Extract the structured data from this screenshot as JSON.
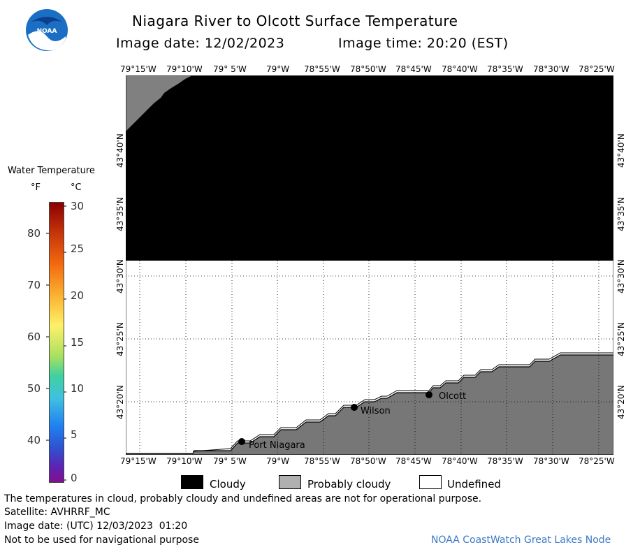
{
  "header": {
    "title": "Niagara River to Olcott Surface Temperature",
    "image_date_label": "Image date: 12/02/2023",
    "image_time_label": "Image time: 20:20 (EST)"
  },
  "logo": {
    "text": "NOAA"
  },
  "colorbar": {
    "title": "Water Temperature",
    "unit_f": "°F",
    "unit_c": "°C",
    "f_ticks": [
      "80",
      "70",
      "60",
      "50",
      "40"
    ],
    "c_ticks": [
      "30",
      "25",
      "20",
      "15",
      "10",
      "5",
      "0"
    ]
  },
  "map": {
    "lon_labels": [
      "79°15'W",
      "79°10'W",
      "79° 5'W",
      "79°W",
      "78°55'W",
      "78°50'W",
      "78°45'W",
      "78°40'W",
      "78°35'W",
      "78°30'W",
      "78°25'W"
    ],
    "lat_labels": [
      "43°40'N",
      "43°35'N",
      "43°30'N",
      "43°25'N",
      "43°20'N"
    ],
    "places": [
      {
        "name": "Port Niagara"
      },
      {
        "name": "Wilson"
      },
      {
        "name": "Olcott"
      }
    ],
    "colors": {
      "cloudy": "#000000",
      "probably_cloudy": "#808080",
      "undefined": "#ffffff"
    }
  },
  "legend": {
    "cloudy": "Cloudy",
    "probably_cloudy": "Probably cloudy",
    "undefined": "Undefined"
  },
  "footer": {
    "disclaimer": "The temperatures in cloud, probably cloudy and undefined areas are not for operational purpose.",
    "satellite": "Satellite: AVHRRF_MC",
    "utc_date": "Image date: (UTC) 12/03/2023  01:20",
    "nav": "Not to be used for navigational purpose",
    "credit": "NOAA CoastWatch Great Lakes Node"
  }
}
